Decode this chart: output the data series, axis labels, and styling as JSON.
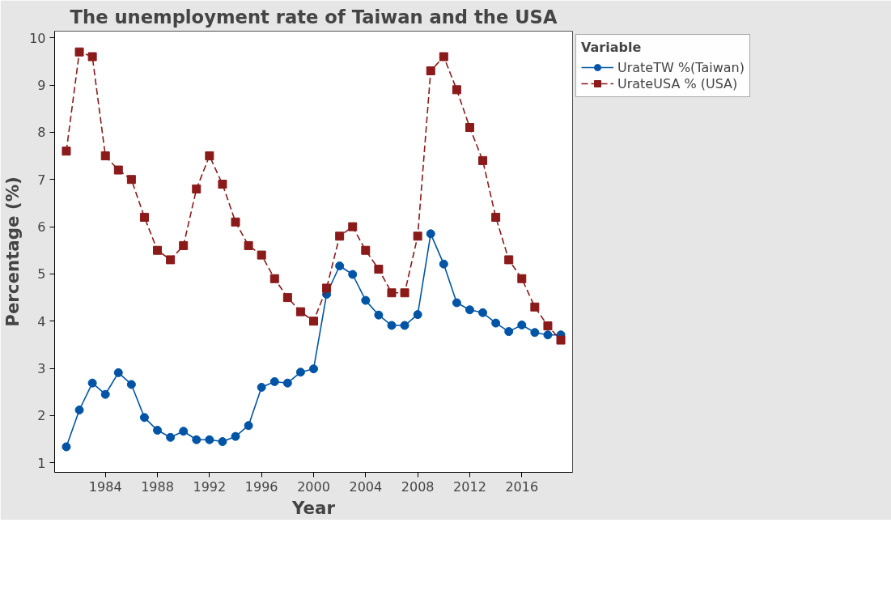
{
  "chart_data": {
    "type": "line",
    "title": "The unemployment rate of Taiwan and the USA",
    "xlabel": "Year",
    "ylabel": "Percentage (%)",
    "legend_title": "Variable",
    "x": [
      1981,
      1982,
      1983,
      1984,
      1985,
      1986,
      1987,
      1988,
      1989,
      1990,
      1991,
      1992,
      1993,
      1994,
      1995,
      1996,
      1997,
      1998,
      1999,
      2000,
      2001,
      2002,
      2003,
      2004,
      2005,
      2006,
      2007,
      2008,
      2009,
      2010,
      2011,
      2012,
      2013,
      2014,
      2015,
      2016,
      2017,
      2018,
      2019
    ],
    "series": [
      {
        "name": "UrateTW %(Taiwan)",
        "color": "#0054a6",
        "marker": "circle",
        "line_style": "solid",
        "values": [
          1.34,
          2.12,
          2.69,
          2.45,
          2.91,
          2.66,
          1.96,
          1.69,
          1.54,
          1.67,
          1.49,
          1.49,
          1.45,
          1.56,
          1.79,
          2.6,
          2.72,
          2.69,
          2.92,
          2.99,
          4.57,
          5.17,
          4.99,
          4.44,
          4.13,
          3.91,
          3.91,
          4.14,
          5.85,
          5.21,
          4.39,
          4.24,
          4.18,
          3.96,
          3.78,
          3.92,
          3.76,
          3.71,
          3.71
        ]
      },
      {
        "name": "UrateUSA % (USA)",
        "color": "#8b1a1a",
        "marker": "square",
        "line_style": "dashed",
        "values": [
          7.6,
          9.7,
          9.6,
          7.5,
          7.2,
          7.0,
          6.2,
          5.5,
          5.3,
          5.6,
          6.8,
          7.5,
          6.9,
          6.1,
          5.6,
          5.4,
          4.9,
          4.5,
          4.2,
          4.0,
          4.7,
          5.8,
          6.0,
          5.5,
          5.1,
          4.6,
          4.6,
          5.8,
          9.3,
          9.6,
          8.9,
          8.1,
          7.4,
          6.2,
          5.3,
          4.9,
          4.3,
          3.9,
          3.6
        ]
      }
    ],
    "xlim": [
      1980.1,
      2019.9
    ],
    "xticks": [
      1984,
      1988,
      1992,
      1996,
      2000,
      2004,
      2008,
      2012,
      2016
    ],
    "ylim": [
      0.8,
      10.14
    ],
    "yticks": [
      1,
      2,
      3,
      4,
      5,
      6,
      7,
      8,
      9,
      10
    ],
    "grid": false,
    "legend": "top right"
  }
}
